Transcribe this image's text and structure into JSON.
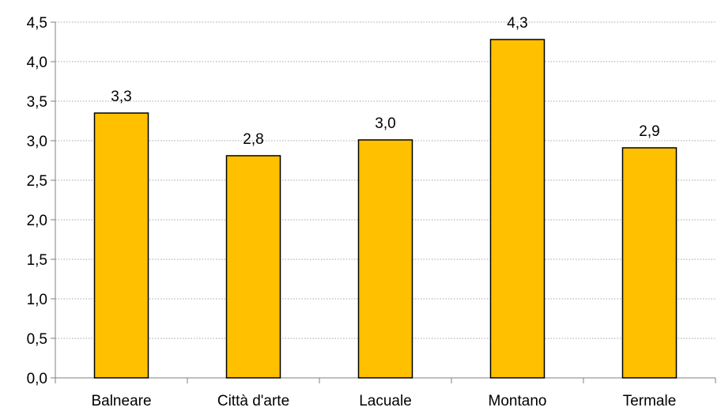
{
  "chart_data": {
    "type": "bar",
    "categories": [
      "Balneare",
      "Città d'arte",
      "Lacuale",
      "Montano",
      "Termale"
    ],
    "values": [
      3.35,
      2.81,
      3.01,
      4.28,
      2.91
    ],
    "data_labels": [
      "3,3",
      "2,8",
      "3,0",
      "4,3",
      "2,9"
    ],
    "y_tick_labels": [
      "0,0",
      "0,5",
      "1,0",
      "1,5",
      "2,0",
      "2,5",
      "3,0",
      "3,5",
      "4,0",
      "4,5"
    ],
    "ylim": [
      0,
      4.5
    ],
    "y_step": 0.5,
    "grid": true,
    "legend": "none",
    "title": "",
    "xlabel": "",
    "ylabel": ""
  },
  "colors": {
    "bar_fill": "#FFC000",
    "bar_stroke": "#000000",
    "grid": "#A6A6A6",
    "axis": "#808080"
  }
}
